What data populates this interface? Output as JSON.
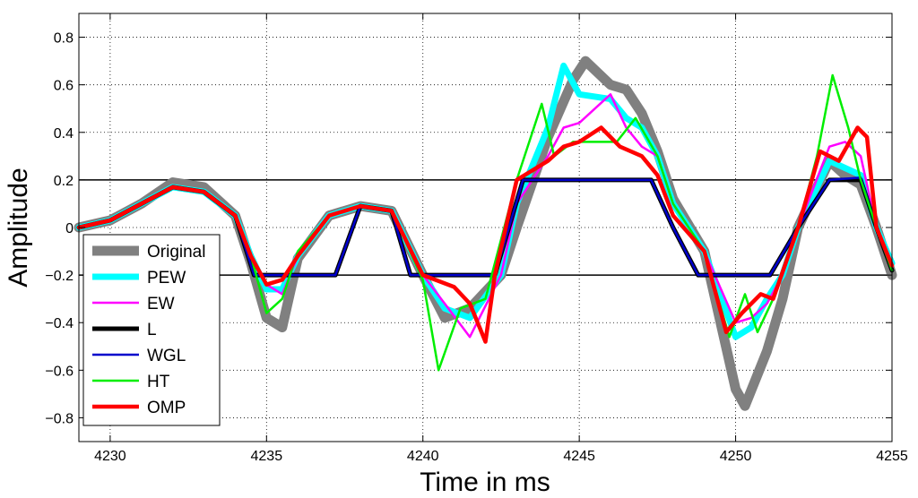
{
  "chart_data": {
    "type": "line",
    "title": "",
    "xlabel": "Time in ms",
    "ylabel": "Amplitude",
    "xlim": [
      4229,
      4255
    ],
    "ylim": [
      -0.9,
      0.9
    ],
    "xticks": [
      4230,
      4235,
      4240,
      4245,
      4250,
      4255
    ],
    "yticks": [
      -0.8,
      -0.6,
      -0.4,
      -0.2,
      0,
      0.2,
      0.4,
      0.6,
      0.8
    ],
    "xtick_labels": [
      "4230",
      "4235",
      "4240",
      "4245",
      "4250",
      "4255"
    ],
    "ytick_labels": [
      "−0.8",
      "−0.6",
      "−0.4",
      "−0.2",
      "0",
      "0.2",
      "0.4",
      "0.6",
      "0.8"
    ],
    "grid": true,
    "legend_position": "lower-left",
    "thresholds": [
      0.2,
      -0.2
    ],
    "series": [
      {
        "name": "Original",
        "color": "#808080",
        "x": [
          4229,
          4230,
          4231,
          4232,
          4233,
          4234,
          4234.5,
          4235,
          4235.5,
          4236,
          4237,
          4238,
          4239,
          4240,
          4240.7,
          4241.5,
          4242.5,
          4243,
          4244,
          4244.8,
          4245.2,
          4246,
          4246.5,
          4247,
          4247.5,
          4248,
          4249,
          4250,
          4250.3,
          4251,
          4251.5,
          4252,
          4253,
          4253.5,
          4254,
          4254.5,
          4255
        ],
        "y": [
          0.0,
          0.03,
          0.1,
          0.19,
          0.17,
          0.05,
          -0.15,
          -0.38,
          -0.42,
          -0.13,
          0.05,
          0.09,
          0.07,
          -0.2,
          -0.38,
          -0.34,
          -0.2,
          0.0,
          0.38,
          0.62,
          0.7,
          0.6,
          0.58,
          0.48,
          0.32,
          0.12,
          -0.1,
          -0.68,
          -0.75,
          -0.52,
          -0.3,
          0.0,
          0.28,
          0.22,
          0.18,
          0.0,
          -0.2
        ]
      },
      {
        "name": "PEW",
        "color": "#00ffff",
        "x": [
          4229,
          4230,
          4231,
          4232,
          4233,
          4234,
          4234.5,
          4235,
          4235.5,
          4236,
          4237,
          4238,
          4239,
          4240,
          4240.7,
          4241.5,
          4242.5,
          4243,
          4244,
          4244.5,
          4245,
          4246,
          4246.5,
          4247,
          4247.5,
          4248,
          4249,
          4250,
          4250.5,
          4251,
          4251.5,
          4252,
          4253,
          4253.5,
          4254,
          4254.5,
          4255
        ],
        "y": [
          0.0,
          0.03,
          0.1,
          0.17,
          0.15,
          0.05,
          -0.12,
          -0.26,
          -0.26,
          -0.12,
          0.05,
          0.09,
          0.07,
          -0.2,
          -0.34,
          -0.38,
          -0.2,
          0.1,
          0.42,
          0.68,
          0.56,
          0.54,
          0.46,
          0.42,
          0.3,
          0.1,
          -0.1,
          -0.46,
          -0.42,
          -0.3,
          -0.2,
          0.0,
          0.28,
          0.25,
          0.22,
          0.0,
          -0.15
        ]
      },
      {
        "name": "EW",
        "color": "#ff00ff",
        "x": [
          4229,
          4230,
          4231,
          4232,
          4233,
          4234,
          4234.5,
          4235,
          4235.5,
          4236,
          4237,
          4238,
          4239,
          4240,
          4240.7,
          4241.5,
          4242.5,
          4243,
          4244,
          4244.5,
          4245,
          4246,
          4246.5,
          4247,
          4247.5,
          4248,
          4249,
          4250,
          4250.5,
          4251,
          4251.5,
          4252,
          4253,
          4253.5,
          4254,
          4254.5,
          4255
        ],
        "y": [
          0.0,
          0.03,
          0.1,
          0.17,
          0.15,
          0.05,
          -0.12,
          -0.24,
          -0.28,
          -0.12,
          0.05,
          0.09,
          0.07,
          -0.2,
          -0.32,
          -0.46,
          -0.2,
          0.1,
          0.3,
          0.42,
          0.44,
          0.56,
          0.42,
          0.34,
          0.3,
          0.1,
          -0.1,
          -0.4,
          -0.38,
          -0.32,
          -0.2,
          0.0,
          0.34,
          0.36,
          0.3,
          0.0,
          -0.15
        ]
      },
      {
        "name": "L",
        "color": "#000000",
        "x": [
          4229,
          4230,
          4231,
          4232,
          4233,
          4234,
          4234.6,
          4237.2,
          4238,
          4239,
          4239.6,
          4242.3,
          4243.2,
          4247.3,
          4248,
          4248.8,
          4251.1,
          4252,
          4253,
          4254,
          4254.5,
          4255
        ],
        "y": [
          0.0,
          0.03,
          0.1,
          0.17,
          0.15,
          0.05,
          -0.2,
          -0.2,
          0.09,
          0.07,
          -0.2,
          -0.2,
          0.2,
          0.2,
          0.0,
          -0.2,
          -0.2,
          0.0,
          0.2,
          0.2,
          0.0,
          -0.18
        ]
      },
      {
        "name": "WGL",
        "color": "#0000cc",
        "x": [
          4229,
          4230,
          4231,
          4232,
          4233,
          4234,
          4234.6,
          4237.2,
          4238,
          4239,
          4239.6,
          4242.3,
          4243.2,
          4247.3,
          4248,
          4248.8,
          4251.1,
          4252,
          4253,
          4254,
          4254.5,
          4255
        ],
        "y": [
          0.0,
          0.03,
          0.1,
          0.17,
          0.15,
          0.05,
          -0.2,
          -0.2,
          0.09,
          0.07,
          -0.2,
          -0.2,
          0.2,
          0.2,
          0.0,
          -0.2,
          -0.2,
          0.0,
          0.2,
          0.21,
          0.0,
          -0.18
        ]
      },
      {
        "name": "HT",
        "color": "#00ee00",
        "x": [
          4229,
          4230,
          4231,
          4232,
          4233,
          4234,
          4234.5,
          4235,
          4235.5,
          4236,
          4237,
          4238,
          4239,
          4240,
          4240.5,
          4241.2,
          4242,
          4243,
          4243.8,
          4244.2,
          4244.8,
          4245.5,
          4246.2,
          4246.8,
          4247.5,
          4248,
          4249,
          4249.8,
          4250.3,
          4250.7,
          4251.2,
          4252,
          4252.6,
          4253.1,
          4253.6,
          4254,
          4254.5,
          4255
        ],
        "y": [
          0.0,
          0.03,
          0.1,
          0.17,
          0.15,
          0.05,
          -0.12,
          -0.36,
          -0.3,
          -0.1,
          0.05,
          0.09,
          0.07,
          -0.22,
          -0.6,
          -0.34,
          -0.3,
          0.2,
          0.52,
          0.3,
          0.36,
          0.36,
          0.36,
          0.46,
          0.3,
          0.1,
          -0.1,
          -0.46,
          -0.28,
          -0.44,
          -0.3,
          0.0,
          0.3,
          0.64,
          0.42,
          0.2,
          0.0,
          -0.18
        ]
      },
      {
        "name": "OMP",
        "color": "#ff0000",
        "x": [
          4229,
          4230,
          4231,
          4232,
          4233,
          4234,
          4234.5,
          4235,
          4235.5,
          4236,
          4237,
          4238,
          4239,
          4240,
          4241,
          4241.5,
          4242,
          4242.3,
          4243,
          4244,
          4244.5,
          4245,
          4245.7,
          4246.3,
          4247,
          4247.5,
          4248,
          4249,
          4249.7,
          4250.2,
          4250.8,
          4251.2,
          4252,
          4252.7,
          4253.3,
          4253.9,
          4254.2,
          4254.5,
          4255
        ],
        "y": [
          0.0,
          0.03,
          0.1,
          0.17,
          0.15,
          0.05,
          -0.12,
          -0.24,
          -0.22,
          -0.12,
          0.05,
          0.09,
          0.07,
          -0.2,
          -0.25,
          -0.32,
          -0.48,
          -0.2,
          0.2,
          0.28,
          0.34,
          0.36,
          0.42,
          0.34,
          0.3,
          0.22,
          0.05,
          -0.1,
          -0.44,
          -0.36,
          -0.28,
          -0.3,
          0.0,
          0.32,
          0.28,
          0.42,
          0.38,
          0.0,
          -0.16
        ]
      }
    ]
  }
}
